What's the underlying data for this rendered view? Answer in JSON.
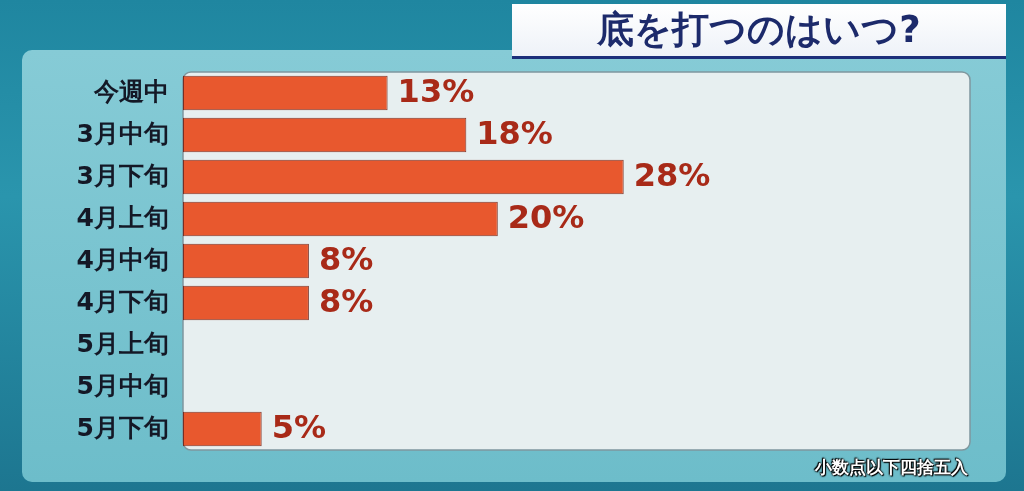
{
  "chart_data": {
    "type": "bar",
    "title": "底を打つのはいつ?",
    "orientation": "horizontal",
    "categories": [
      "今週中",
      "3月中旬",
      "3月下旬",
      "4月上旬",
      "4月中旬",
      "4月下旬",
      "5月上旬",
      "5月中旬",
      "5月下旬"
    ],
    "values": [
      13,
      18,
      28,
      20,
      8,
      8,
      null,
      null,
      5
    ],
    "value_labels": [
      "13%",
      "18%",
      "28%",
      "20%",
      "8%",
      "8%",
      null,
      null,
      "5%"
    ],
    "color": "#e8582e",
    "xlim": [
      0,
      50
    ],
    "tick_labels": "y",
    "annotations": [
      "小数点以下四捨五入"
    ]
  }
}
